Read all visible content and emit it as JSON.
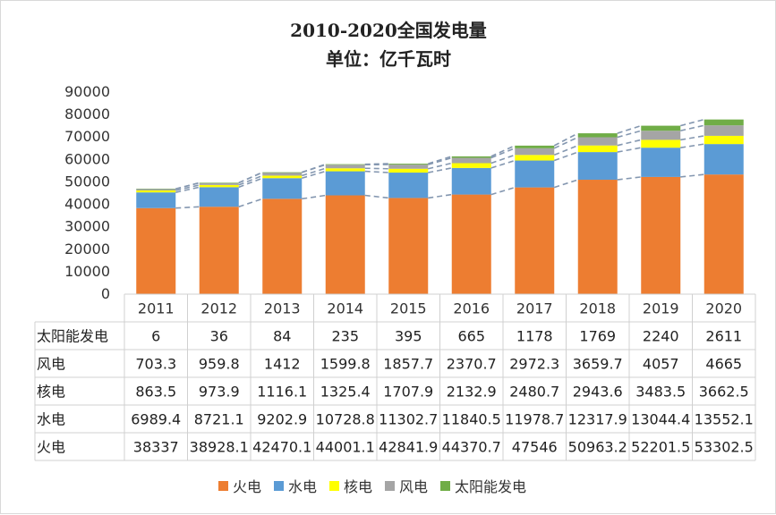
{
  "chart_data": {
    "type": "bar",
    "stacked": true,
    "title_line1": "2010-2020全国发电量",
    "title_line2": "单位：亿千瓦时",
    "categories": [
      "2011",
      "2012",
      "2013",
      "2014",
      "2015",
      "2016",
      "2017",
      "2018",
      "2019",
      "2020"
    ],
    "series": [
      {
        "name": "火电",
        "color": "#ED7D31",
        "values": [
          "38337",
          "38928.1",
          "42470.1",
          "44001.1",
          "42841.9",
          "44370.7",
          "47546",
          "50963.2",
          "52201.5",
          "53302.5"
        ]
      },
      {
        "name": "水电",
        "color": "#5B9BD5",
        "values": [
          "6989.4",
          "8721.1",
          "9202.9",
          "10728.8",
          "11302.7",
          "11840.5",
          "11978.7",
          "12317.9",
          "13044.4",
          "13552.1"
        ]
      },
      {
        "name": "核电",
        "color": "#FFFF00",
        "values": [
          "863.5",
          "973.9",
          "1116.1",
          "1325.4",
          "1707.9",
          "2132.9",
          "2480.7",
          "2943.6",
          "3483.5",
          "3662.5"
        ]
      },
      {
        "name": "风电",
        "color": "#A5A5A5",
        "values": [
          "703.3",
          "959.8",
          "1412",
          "1599.8",
          "1857.7",
          "2370.7",
          "2972.3",
          "3659.7",
          "4057",
          "4665"
        ]
      },
      {
        "name": "太阳能发电",
        "color": "#70AD47",
        "values": [
          "6",
          "36",
          "84",
          "235",
          "395",
          "665",
          "1178",
          "1769",
          "2240",
          "2611"
        ]
      }
    ],
    "table_row_order": [
      "太阳能发电",
      "风电",
      "核电",
      "水电",
      "火电"
    ],
    "ylim": [
      0,
      90000
    ],
    "yticks": [
      "0",
      "10000",
      "20000",
      "30000",
      "40000",
      "50000",
      "60000",
      "70000",
      "80000",
      "90000"
    ],
    "series_lines": true,
    "series_line_color": "#8497B0",
    "legend_position": "bottom"
  }
}
